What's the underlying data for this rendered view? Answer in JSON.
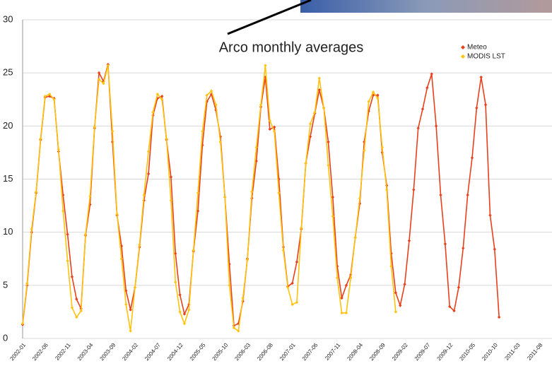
{
  "chart_data": {
    "type": "line",
    "title": "Arco monthly averages",
    "categories": [
      "2002-01",
      null,
      null,
      null,
      null,
      "2002-06",
      null,
      null,
      null,
      null,
      "2002-11",
      null,
      null,
      null,
      null,
      "2003-04",
      null,
      null,
      null,
      null,
      "2003-09",
      null,
      null,
      null,
      null,
      "2004-02",
      null,
      null,
      null,
      null,
      "2004-07",
      null,
      null,
      null,
      null,
      "2004-12",
      null,
      null,
      null,
      null,
      "2005-05",
      null,
      null,
      null,
      null,
      "2005-10",
      null,
      null,
      null,
      null,
      "2006-03",
      null,
      null,
      null,
      null,
      "2006-08",
      null,
      null,
      null,
      null,
      "2007-01",
      null,
      null,
      null,
      null,
      "2007-06",
      null,
      null,
      null,
      null,
      "2007-11",
      null,
      null,
      null,
      null,
      "2008-04",
      null,
      null,
      null,
      null,
      "2008-09",
      null,
      null,
      null,
      null,
      "2009-02",
      null,
      null,
      null,
      null,
      "2009-07",
      null,
      null,
      null,
      null,
      "2009-12",
      null,
      null,
      null,
      null,
      "2010-05",
      null,
      null,
      null,
      null,
      "2010-10",
      null,
      null,
      null,
      null,
      "2011-03",
      null,
      null,
      null,
      null,
      "2011-08"
    ],
    "series": [
      {
        "name": "Meteo",
        "color": "#e8401c",
        "values": [
          1.3,
          5,
          10,
          13.7,
          18.7,
          22.7,
          22.8,
          22.6,
          17.6,
          13.5,
          9.8,
          5.8,
          3.7,
          2.8,
          9.7,
          12.6,
          19.8,
          25,
          24.2,
          25.8,
          18.5,
          11.6,
          8.7,
          4.5,
          2.7,
          4.8,
          8.6,
          13,
          15.5,
          21,
          22.6,
          22.8,
          18.7,
          15.2,
          8,
          4.1,
          2.3,
          3.2,
          8.2,
          12,
          18.2,
          22.3,
          23,
          21.5,
          19,
          13.3,
          7,
          1.2,
          1.4,
          3.5,
          7.5,
          13.2,
          16.7,
          21.8,
          24.6,
          19.7,
          19.9,
          15,
          8.6,
          4.9,
          5.2,
          7.2,
          10.3,
          16.5,
          19,
          21.2,
          23.4,
          21.7,
          18.5,
          13.3,
          6.8,
          3.8,
          5,
          6,
          9.5,
          12.7,
          18.5,
          21.4,
          22.9,
          22.9,
          17.5,
          14.4,
          8,
          4.3,
          3.1,
          5.1,
          9.2,
          14,
          19.8,
          21.6,
          23.6,
          24.9,
          20,
          13.5,
          8.9,
          3,
          2.6,
          4.8,
          8.5,
          13.5,
          17,
          21.7,
          24.6,
          22,
          11.6,
          8.4,
          2,
          null,
          null,
          null,
          null,
          null,
          null,
          null,
          null,
          null
        ]
      },
      {
        "name": "MODIS LST",
        "color": "#ffc20e",
        "values": [
          1.4,
          5.2,
          10.3,
          13.8,
          18.8,
          22.8,
          23,
          22.5,
          17.8,
          12,
          7.3,
          2.9,
          2,
          2.6,
          9.8,
          13.4,
          19.9,
          24.4,
          24,
          25.7,
          19.5,
          11.7,
          7.5,
          3.2,
          0.7,
          4.8,
          8.8,
          13.5,
          17.6,
          21.3,
          23,
          22.5,
          18.8,
          13,
          5.3,
          2.5,
          1.4,
          2.7,
          8.3,
          13.7,
          19.5,
          22.9,
          23.3,
          22,
          18.5,
          13.3,
          5,
          1,
          0.7,
          3.8,
          7.4,
          13.8,
          18,
          22,
          25.7,
          20.5,
          19.5,
          13.7,
          8.3,
          4.8,
          3.2,
          3.4,
          10.4,
          16.5,
          20.2,
          21.3,
          24.5,
          21.7,
          16.3,
          11.5,
          5.7,
          2.4,
          2.4,
          5.7,
          9.5,
          13.2,
          17.7,
          22.3,
          23.2,
          22.6,
          18,
          14,
          6.8,
          2.5,
          null,
          null,
          null,
          null,
          null,
          null,
          null,
          null,
          null,
          null,
          null,
          null,
          null,
          null,
          null,
          null,
          null,
          null,
          null,
          null,
          null,
          null,
          null,
          null,
          null,
          null,
          null,
          null,
          null,
          null,
          null,
          null
        ]
      }
    ],
    "ylim": [
      0,
      30
    ],
    "yticks": [
      0,
      5,
      10,
      15,
      20,
      25,
      30
    ],
    "grid": true,
    "legend": "top-right"
  }
}
